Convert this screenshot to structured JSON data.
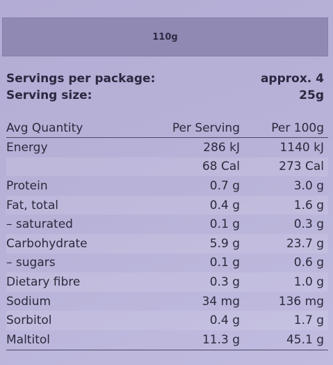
{
  "banner": {
    "weight": "110g"
  },
  "servings": {
    "per_package_label": "Servings per package:",
    "per_package_value": "approx. 4",
    "size_label": "Serving size:",
    "size_value": "25g"
  },
  "table": {
    "headers": [
      "Avg Quantity",
      "Per Serving",
      "Per 100g"
    ],
    "rows": [
      [
        "Energy",
        "286 kJ",
        "1140 kJ"
      ],
      [
        "",
        "68 Cal",
        "273 Cal"
      ],
      [
        "Protein",
        "0.7 g",
        "3.0 g"
      ],
      [
        "Fat, total",
        "0.4 g",
        "1.6 g"
      ],
      [
        "– saturated",
        "0.1 g",
        "0.3 g"
      ],
      [
        "Carbohydrate",
        "5.9 g",
        "23.7 g"
      ],
      [
        "– sugars",
        "0.1 g",
        "0.6 g"
      ],
      [
        "Dietary fibre",
        "0.3 g",
        "1.0 g"
      ],
      [
        "Sodium",
        "34 mg",
        "136 mg"
      ],
      [
        "Sorbitol",
        "0.4 g",
        "1.7 g"
      ],
      [
        "Maltitol",
        "11.3 g",
        "45.1 g"
      ]
    ]
  }
}
